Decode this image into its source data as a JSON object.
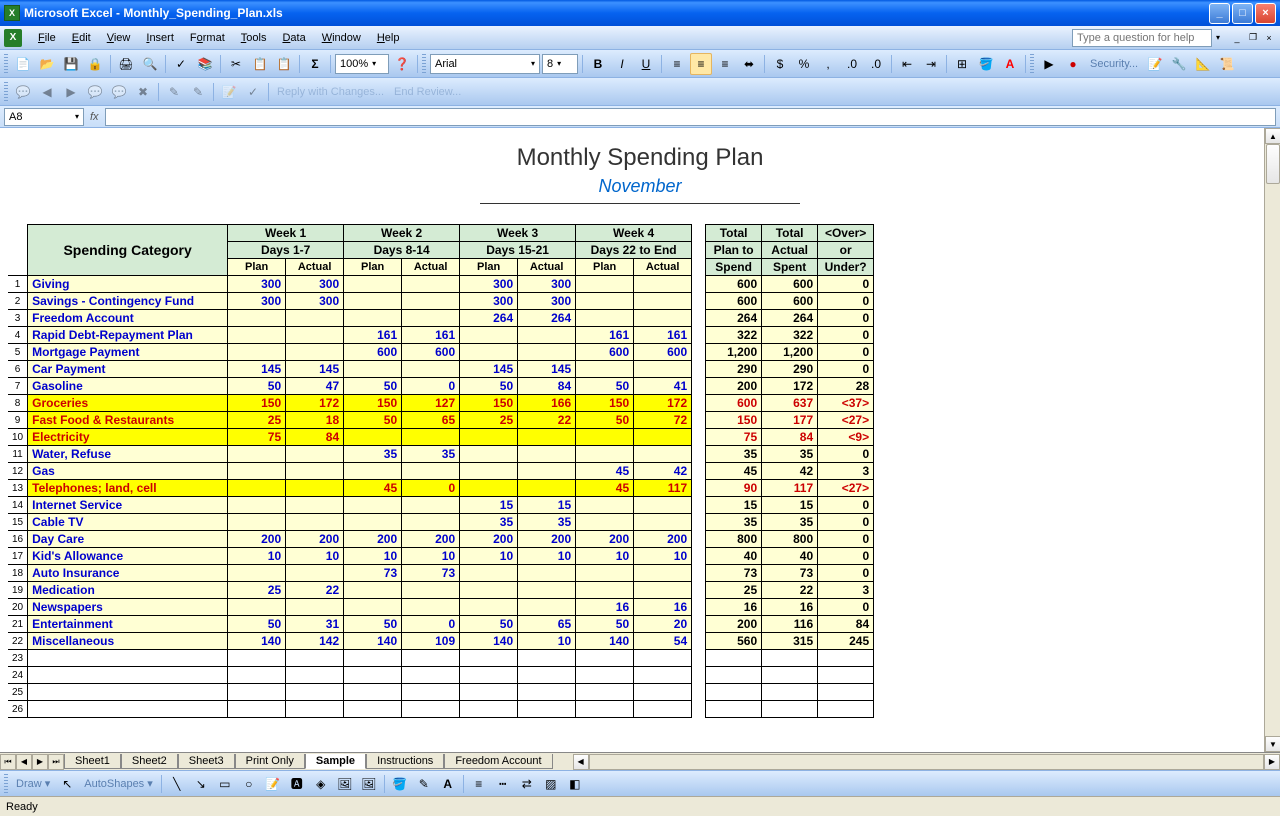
{
  "window": {
    "title": "Microsoft Excel - Monthly_Spending_Plan.xls"
  },
  "menus": [
    "File",
    "Edit",
    "View",
    "Insert",
    "Format",
    "Tools",
    "Data",
    "Window",
    "Help"
  ],
  "help_placeholder": "Type a question for help",
  "toolbar1": {
    "zoom": "100%",
    "font": "Arial",
    "fontsize": "8"
  },
  "toolbar3": {
    "reply": "Reply with Changes...",
    "end": "End Review..."
  },
  "security_label": "Security...",
  "formula_bar": {
    "cell_ref": "A8",
    "fx": "fx"
  },
  "document": {
    "title": "Monthly Spending Plan",
    "subtitle": "November",
    "category_header": "Spending Category",
    "weeks": [
      {
        "title": "Week 1",
        "days": "Days 1-7"
      },
      {
        "title": "Week 2",
        "days": "Days 8-14"
      },
      {
        "title": "Week 3",
        "days": "Days 15-21"
      },
      {
        "title": "Week 4",
        "days": "Days 22 to End"
      }
    ],
    "col_plan": "Plan",
    "col_actual": "Actual",
    "totals": {
      "plan_label1": "Total",
      "plan_label2": "Plan to",
      "plan_label3": "Spend",
      "actual_label1": "Total",
      "actual_label2": "Actual",
      "actual_label3": "Spent",
      "over_label1": "<Over>",
      "over_label2": "or",
      "over_label3": "Under?"
    },
    "rows": [
      {
        "n": 1,
        "cat": "Giving",
        "hl": false,
        "w": [
          [
            "300",
            "300"
          ],
          [
            "",
            ""
          ],
          [
            "300",
            "300"
          ],
          [
            "",
            ""
          ]
        ],
        "t": [
          "600",
          "600",
          "0"
        ]
      },
      {
        "n": 2,
        "cat": "Savings - Contingency Fund",
        "hl": false,
        "w": [
          [
            "300",
            "300"
          ],
          [
            "",
            ""
          ],
          [
            "300",
            "300"
          ],
          [
            "",
            ""
          ]
        ],
        "t": [
          "600",
          "600",
          "0"
        ]
      },
      {
        "n": 3,
        "cat": "Freedom Account",
        "hl": false,
        "w": [
          [
            "",
            ""
          ],
          [
            "",
            ""
          ],
          [
            "264",
            "264"
          ],
          [
            "",
            ""
          ]
        ],
        "t": [
          "264",
          "264",
          "0"
        ]
      },
      {
        "n": 4,
        "cat": "Rapid Debt-Repayment Plan",
        "hl": false,
        "w": [
          [
            "",
            ""
          ],
          [
            "161",
            "161"
          ],
          [
            "",
            ""
          ],
          [
            "161",
            "161"
          ]
        ],
        "t": [
          "322",
          "322",
          "0"
        ]
      },
      {
        "n": 5,
        "cat": "Mortgage Payment",
        "hl": false,
        "w": [
          [
            "",
            ""
          ],
          [
            "600",
            "600"
          ],
          [
            "",
            ""
          ],
          [
            "600",
            "600"
          ]
        ],
        "t": [
          "1,200",
          "1,200",
          "0"
        ]
      },
      {
        "n": 6,
        "cat": "Car Payment",
        "hl": false,
        "w": [
          [
            "145",
            "145"
          ],
          [
            "",
            ""
          ],
          [
            "145",
            "145"
          ],
          [
            "",
            ""
          ]
        ],
        "t": [
          "290",
          "290",
          "0"
        ]
      },
      {
        "n": 7,
        "cat": "Gasoline",
        "hl": false,
        "w": [
          [
            "50",
            "47"
          ],
          [
            "50",
            "0"
          ],
          [
            "50",
            "84"
          ],
          [
            "50",
            "41"
          ]
        ],
        "t": [
          "200",
          "172",
          "28"
        ]
      },
      {
        "n": 8,
        "cat": "Groceries",
        "hl": true,
        "w": [
          [
            "150",
            "172"
          ],
          [
            "150",
            "127"
          ],
          [
            "150",
            "166"
          ],
          [
            "150",
            "172"
          ]
        ],
        "t": [
          "600",
          "637",
          "<37>"
        ]
      },
      {
        "n": 9,
        "cat": "Fast Food & Restaurants",
        "hl": true,
        "w": [
          [
            "25",
            "18"
          ],
          [
            "50",
            "65"
          ],
          [
            "25",
            "22"
          ],
          [
            "50",
            "72"
          ]
        ],
        "t": [
          "150",
          "177",
          "<27>"
        ]
      },
      {
        "n": 10,
        "cat": "Electricity",
        "hl": true,
        "w": [
          [
            "75",
            "84"
          ],
          [
            "",
            ""
          ],
          [
            "",
            ""
          ],
          [
            "",
            ""
          ]
        ],
        "t": [
          "75",
          "84",
          "<9>"
        ]
      },
      {
        "n": 11,
        "cat": "Water, Refuse",
        "hl": false,
        "w": [
          [
            "",
            ""
          ],
          [
            "35",
            "35"
          ],
          [
            "",
            ""
          ],
          [
            "",
            ""
          ]
        ],
        "t": [
          "35",
          "35",
          "0"
        ]
      },
      {
        "n": 12,
        "cat": "Gas",
        "hl": false,
        "w": [
          [
            "",
            ""
          ],
          [
            "",
            ""
          ],
          [
            "",
            ""
          ],
          [
            "45",
            "42"
          ]
        ],
        "t": [
          "45",
          "42",
          "3"
        ]
      },
      {
        "n": 13,
        "cat": "Telephones; land, cell",
        "hl": true,
        "w": [
          [
            "",
            ""
          ],
          [
            "45",
            "0"
          ],
          [
            "",
            ""
          ],
          [
            "45",
            "117"
          ]
        ],
        "t": [
          "90",
          "117",
          "<27>"
        ]
      },
      {
        "n": 14,
        "cat": "Internet Service",
        "hl": false,
        "w": [
          [
            "",
            ""
          ],
          [
            "",
            ""
          ],
          [
            "15",
            "15"
          ],
          [
            "",
            ""
          ]
        ],
        "t": [
          "15",
          "15",
          "0"
        ]
      },
      {
        "n": 15,
        "cat": "Cable TV",
        "hl": false,
        "w": [
          [
            "",
            ""
          ],
          [
            "",
            ""
          ],
          [
            "35",
            "35"
          ],
          [
            "",
            ""
          ]
        ],
        "t": [
          "35",
          "35",
          "0"
        ]
      },
      {
        "n": 16,
        "cat": "Day Care",
        "hl": false,
        "w": [
          [
            "200",
            "200"
          ],
          [
            "200",
            "200"
          ],
          [
            "200",
            "200"
          ],
          [
            "200",
            "200"
          ]
        ],
        "t": [
          "800",
          "800",
          "0"
        ]
      },
      {
        "n": 17,
        "cat": "Kid's Allowance",
        "hl": false,
        "w": [
          [
            "10",
            "10"
          ],
          [
            "10",
            "10"
          ],
          [
            "10",
            "10"
          ],
          [
            "10",
            "10"
          ]
        ],
        "t": [
          "40",
          "40",
          "0"
        ]
      },
      {
        "n": 18,
        "cat": "Auto Insurance",
        "hl": false,
        "w": [
          [
            "",
            ""
          ],
          [
            "73",
            "73"
          ],
          [
            "",
            ""
          ],
          [
            "",
            ""
          ]
        ],
        "t": [
          "73",
          "73",
          "0"
        ]
      },
      {
        "n": 19,
        "cat": "Medication",
        "hl": false,
        "w": [
          [
            "25",
            "22"
          ],
          [
            "",
            ""
          ],
          [
            "",
            ""
          ],
          [
            "",
            ""
          ]
        ],
        "t": [
          "25",
          "22",
          "3"
        ]
      },
      {
        "n": 20,
        "cat": "Newspapers",
        "hl": false,
        "w": [
          [
            "",
            ""
          ],
          [
            "",
            ""
          ],
          [
            "",
            ""
          ],
          [
            "16",
            "16"
          ]
        ],
        "t": [
          "16",
          "16",
          "0"
        ]
      },
      {
        "n": 21,
        "cat": "Entertainment",
        "hl": false,
        "w": [
          [
            "50",
            "31"
          ],
          [
            "50",
            "0"
          ],
          [
            "50",
            "65"
          ],
          [
            "50",
            "20"
          ]
        ],
        "t": [
          "200",
          "116",
          "84"
        ]
      },
      {
        "n": 22,
        "cat": "Miscellaneous",
        "hl": false,
        "w": [
          [
            "140",
            "142"
          ],
          [
            "140",
            "109"
          ],
          [
            "140",
            "10"
          ],
          [
            "140",
            "54"
          ]
        ],
        "t": [
          "560",
          "315",
          "245"
        ]
      }
    ],
    "empty_rows": [
      23,
      24,
      25,
      26
    ]
  },
  "sheet_tabs": [
    "Sheet1",
    "Sheet2",
    "Sheet3",
    "Print Only",
    "Sample",
    "Instructions",
    "Freedom Account"
  ],
  "active_tab": 4,
  "draw_toolbar": {
    "draw_label": "Draw",
    "autoshapes_label": "AutoShapes"
  },
  "statusbar": {
    "ready": "Ready"
  },
  "colors": {
    "header_green": "#d4ebd4",
    "header_yellow": "#ffffd4",
    "row_highlight": "#ffff00",
    "text_blue": "#0000cc",
    "text_red": "#cc0000",
    "titlebar_gradient": [
      "#0058e1",
      "#0050d8"
    ]
  }
}
